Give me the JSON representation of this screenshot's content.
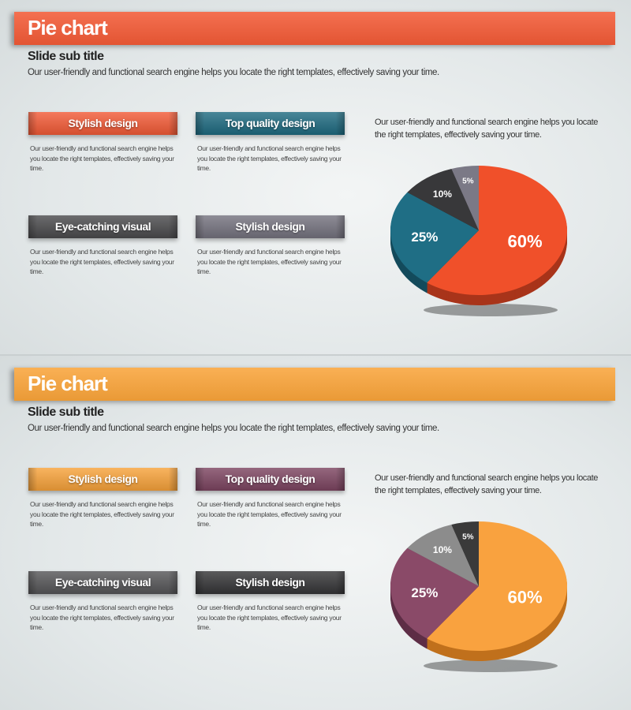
{
  "slides": [
    {
      "title": "Pie chart",
      "subtitle": "Slide sub title",
      "description": "Our user-friendly and functional search engine helps you locate the right templates, effectively saving your time.",
      "title_color": "#f25a36",
      "cards": [
        {
          "label": "Stylish design",
          "color": "#f25a36",
          "text": "Our user-friendly and functional  search engine helps you locate the right templates,  effectively saving your time."
        },
        {
          "label": "Top quality design",
          "color": "#1e6a80",
          "text": "Our user-friendly and functional  search engine helps you locate the right templates,  effectively saving your time."
        },
        {
          "label": "Eye-catching visual",
          "color": "#4a4a4c",
          "text": "Our user-friendly and functional  search engine helps you locate the right templates,  effectively saving your time."
        },
        {
          "label": "Stylish design",
          "color": "#74727e",
          "text": "Our user-friendly and functional  search engine helps you locate the right templates,  effectively saving your time."
        }
      ],
      "chart_description": "Our user-friendly and functional search engine helps you locate the right templates, effectively saving your time.",
      "chart_data": {
        "type": "pie",
        "values": [
          60,
          25,
          10,
          5
        ],
        "labels": [
          "60%",
          "25%",
          "10%",
          "5%"
        ],
        "colors": [
          "#f0502a",
          "#1f6e85",
          "#38383a",
          "#7b7986"
        ],
        "side_colors": [
          "#a8341a",
          "#144b5c",
          "#222224",
          "#55535e"
        ]
      }
    },
    {
      "title": "Pie chart",
      "subtitle": "Slide sub title",
      "description": "Our user-friendly and functional search engine helps you locate the right templates, effectively saving your time.",
      "title_color": "#f9a43a",
      "cards": [
        {
          "label": "Stylish design",
          "color": "#f7a23a",
          "text": "Our user-friendly and functional  search engine helps you locate the right templates,  effectively saving your time."
        },
        {
          "label": "Top quality design",
          "color": "#7c4460",
          "text": "Our user-friendly and functional  search engine helps you locate the right templates,  effectively saving your time."
        },
        {
          "label": "Eye-catching visual",
          "color": "#555557",
          "text": "Our user-friendly and functional  search engine helps you locate the right templates,  effectively saving your time."
        },
        {
          "label": "Stylish design",
          "color": "#343436",
          "text": "Our user-friendly and functional  search engine helps you locate the right templates,  effectively saving your time."
        }
      ],
      "chart_description": "Our user-friendly and functional search engine helps you locate the right templates, effectively saving your time.",
      "chart_data": {
        "type": "pie",
        "values": [
          60,
          25,
          10,
          5
        ],
        "labels": [
          "60%",
          "25%",
          "10%",
          "5%"
        ],
        "colors": [
          "#f9a23f",
          "#8a4a68",
          "#8c8c8c",
          "#3a3a3a"
        ],
        "side_colors": [
          "#c0701c",
          "#5e2e46",
          "#606060",
          "#222222"
        ]
      }
    }
  ]
}
